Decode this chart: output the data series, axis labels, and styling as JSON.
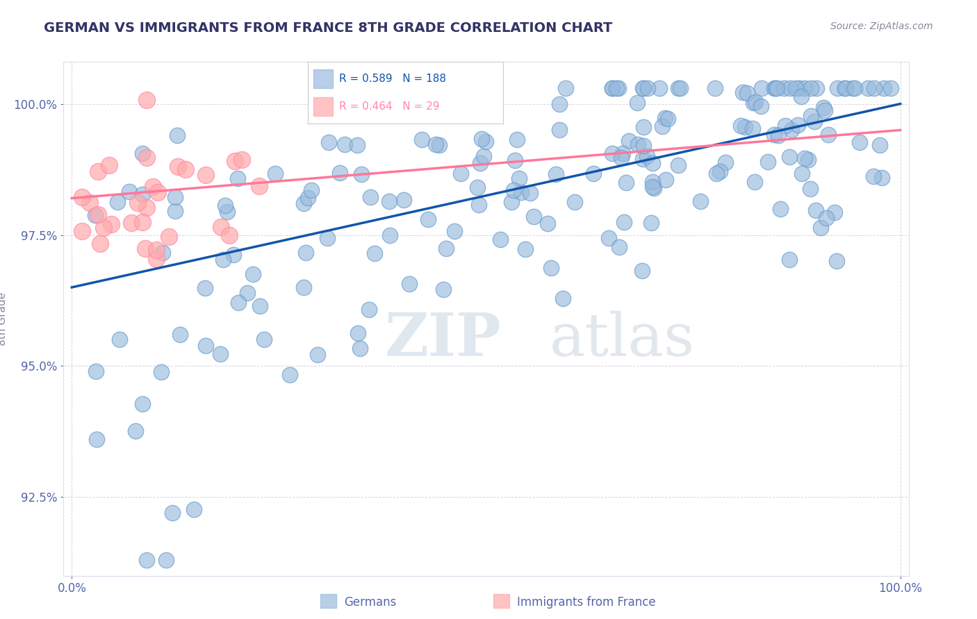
{
  "title": "GERMAN VS IMMIGRANTS FROM FRANCE 8TH GRADE CORRELATION CHART",
  "source_text": "Source: ZipAtlas.com",
  "ylabel": "8th Grade",
  "watermark": "ZIPatlas",
  "xlim": [
    -1.0,
    101.0
  ],
  "ylim": [
    91.0,
    100.8
  ],
  "yticks": [
    92.5,
    95.0,
    97.5,
    100.0
  ],
  "xticks": [
    0.0,
    100.0
  ],
  "xticklabels": [
    "0.0%",
    "100.0%"
  ],
  "yticklabels": [
    "92.5%",
    "95.0%",
    "97.5%",
    "100.0%"
  ],
  "blue_R": 0.589,
  "blue_N": 188,
  "pink_R": 0.464,
  "pink_N": 29,
  "blue_color": "#99BBDD",
  "pink_color": "#FFAAAA",
  "blue_edge_color": "#6699CC",
  "pink_edge_color": "#FF88AA",
  "blue_line_color": "#1155AA",
  "pink_line_color": "#FF7799",
  "background_color": "#FFFFFF",
  "grid_color": "#BBBBCC",
  "title_color": "#333366",
  "tick_color": "#5566AA",
  "source_color": "#888899"
}
